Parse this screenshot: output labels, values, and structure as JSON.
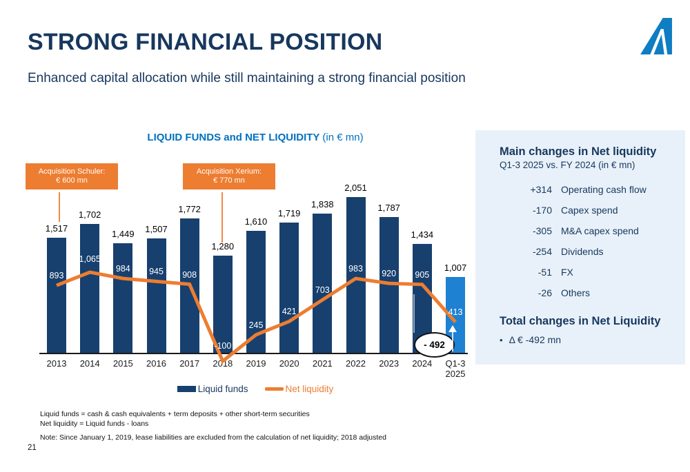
{
  "header": {
    "title": "STRONG FINANCIAL POSITION",
    "subtitle": "Enhanced capital allocation while still maintaining a strong financial position"
  },
  "logo": {
    "name": "andritz-a-logo",
    "color": "#0E7DC2"
  },
  "chart": {
    "title": "LIQUID FUNDS and NET LIQUIDITY",
    "title_unit": "(in € mn)",
    "callouts": [
      {
        "line1": "Acquisition Schuler:",
        "line2": "€ 600 mn"
      },
      {
        "line1": "Acquisition Xerium:",
        "line2": "€ 770 mn"
      }
    ],
    "legend": [
      {
        "label": "Liquid funds",
        "color": "#17406E",
        "type": "bar"
      },
      {
        "label": "Net liquidity",
        "color": "#ED7D31",
        "type": "line"
      }
    ]
  },
  "chart_data": {
    "type": "bar",
    "title": "LIQUID FUNDS and NET LIQUIDITY (in € mn)",
    "categories": [
      "2013",
      "2014",
      "2015",
      "2016",
      "2017",
      "2018",
      "2019",
      "2020",
      "2021",
      "2022",
      "2023",
      "2024",
      "Q1-3\n2025"
    ],
    "series": [
      {
        "name": "Liquid funds",
        "type": "bar",
        "values": [
          1517,
          1702,
          1449,
          1507,
          1772,
          1280,
          1610,
          1719,
          1838,
          2051,
          1787,
          1434,
          1007
        ],
        "labels": [
          "1,517",
          "1,702",
          "1,449",
          "1,507",
          "1,772",
          "1,280",
          "1,610",
          "1,719",
          "1,838",
          "2,051",
          "1,787",
          "1,434",
          "1,007"
        ]
      },
      {
        "name": "Net liquidity",
        "type": "line",
        "values": [
          893,
          1065,
          984,
          945,
          908,
          -100,
          245,
          421,
          703,
          983,
          920,
          905,
          413
        ],
        "labels": [
          "893",
          "1,065",
          "984",
          "945",
          "908",
          "-100",
          "245",
          "421",
          "703",
          "983",
          "920",
          "905",
          "413"
        ]
      }
    ],
    "ylim": [
      -150,
      2150
    ],
    "grid": false,
    "legend_position": "bottom",
    "bar_color": "#17406E",
    "bar_color_last": "#1E81D2",
    "line_color": "#ED7D31",
    "annotation": {
      "text": "- 492",
      "at_category": "Q1-3 2025"
    }
  },
  "side_panel": {
    "heading": "Main changes in Net liquidity",
    "subheading": "Q1-3 2025 vs. FY 2024 (in € mn)",
    "rows": [
      {
        "value": "+314",
        "label": "Operating cash flow"
      },
      {
        "value": "-170",
        "label": "Capex spend"
      },
      {
        "value": "-305",
        "label": "M&A capex spend"
      },
      {
        "value": "-254",
        "label": "Dividends"
      },
      {
        "value": "-51",
        "label": "FX"
      },
      {
        "value": "-26",
        "label": "Others"
      }
    ],
    "total_heading": "Total changes in Net Liquidity",
    "bullet": "•",
    "total_value": "Δ € -492 mn"
  },
  "footnotes": [
    "Liquid funds = cash & cash equivalents + term deposits + other short-term securities",
    "Net liquidity = Liquid funds - loans",
    "Note: Since January 1, 2019, lease liabilities are excluded from the calculation of net liquidity; 2018 adjusted"
  ],
  "page_number": "21"
}
